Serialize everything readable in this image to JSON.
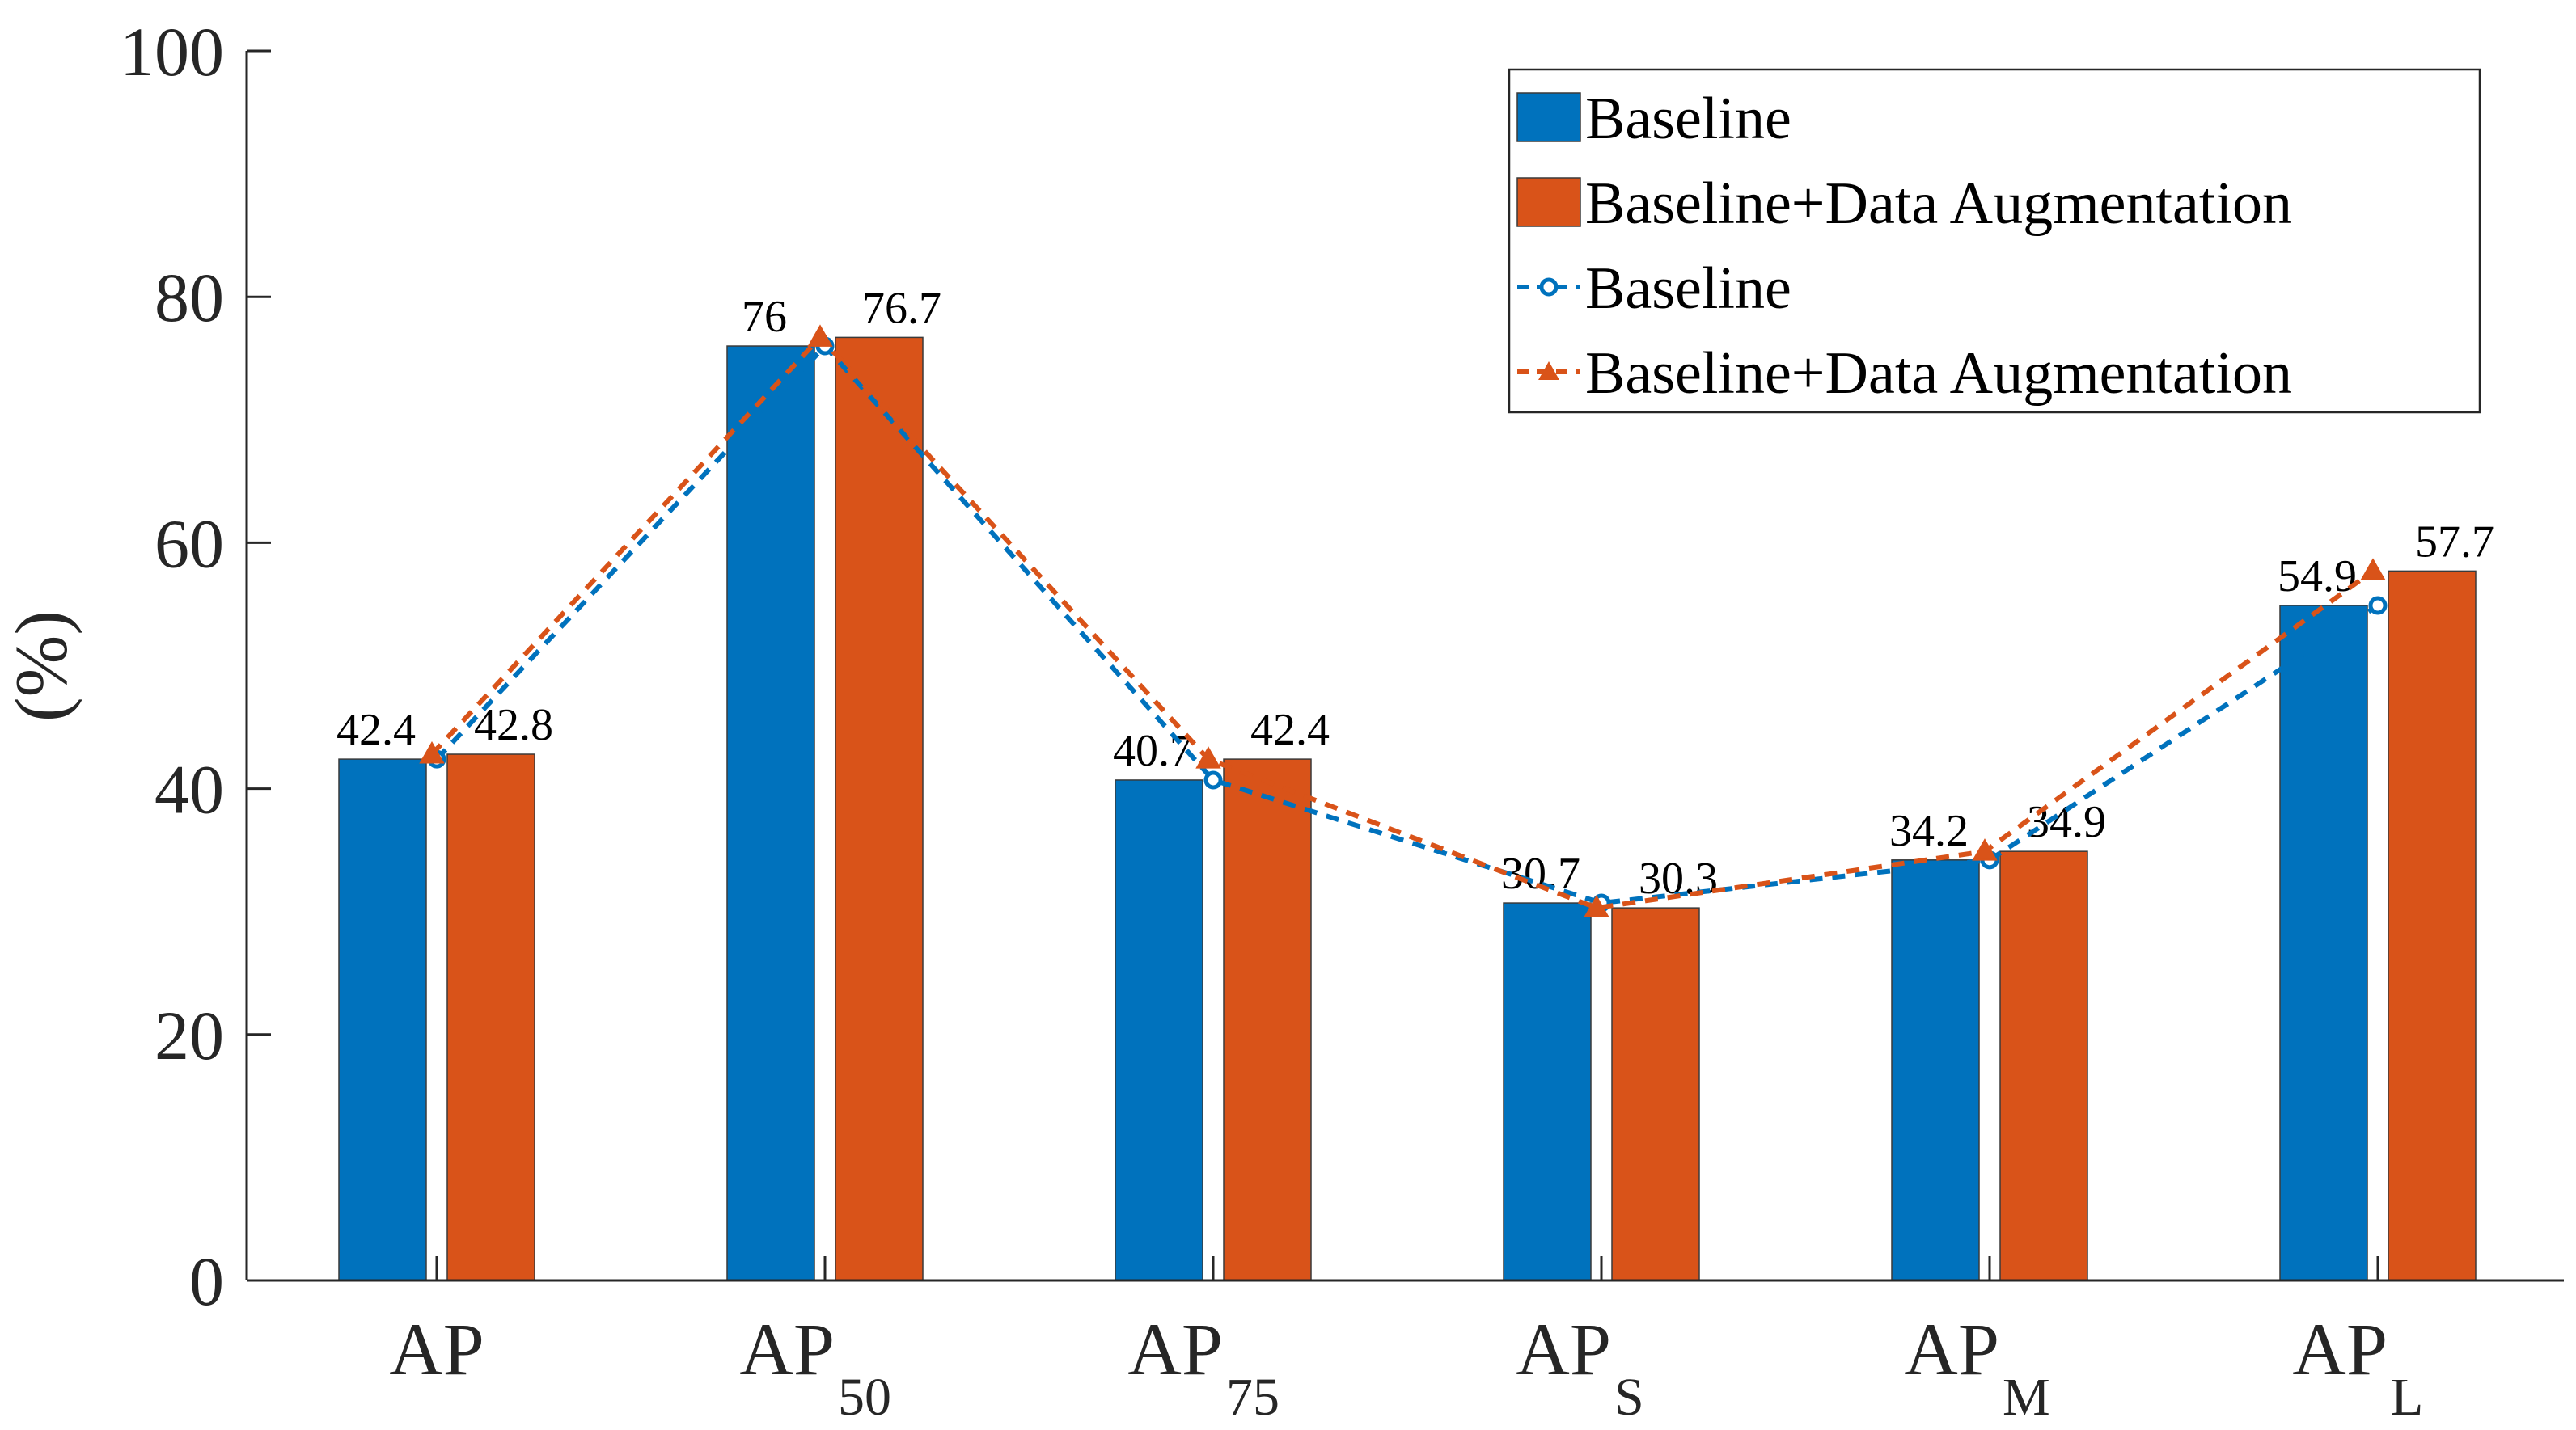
{
  "chart_data": {
    "type": "bar",
    "title": "",
    "xlabel": "",
    "ylabel": "(%)",
    "ylim": [
      0,
      100
    ],
    "yticks": [
      0,
      20,
      40,
      60,
      80,
      100
    ],
    "grid": false,
    "legend_position": "top-right",
    "categories": [
      {
        "base": "AP",
        "sub": ""
      },
      {
        "base": "AP",
        "sub": "50"
      },
      {
        "base": "AP",
        "sub": "75"
      },
      {
        "base": "AP",
        "sub": "S"
      },
      {
        "base": "AP",
        "sub": "M"
      },
      {
        "base": "AP",
        "sub": "L"
      }
    ],
    "series": [
      {
        "name": "Baseline",
        "kind": "bar",
        "color": "#0072BD",
        "values": [
          42.4,
          76,
          40.7,
          30.7,
          34.2,
          54.9
        ],
        "labels": [
          "42.4",
          "76",
          "40.7",
          "30.7",
          "34.2",
          "54.9"
        ]
      },
      {
        "name": "Baseline+Data Augmentation",
        "kind": "bar",
        "color": "#D95319",
        "values": [
          42.8,
          76.7,
          42.4,
          30.3,
          34.9,
          57.7
        ],
        "labels": [
          "42.8",
          "76.7",
          "42.4",
          "30.3",
          "34.9",
          "57.7"
        ]
      },
      {
        "name": "Baseline",
        "kind": "line",
        "marker": "circle",
        "style": "dashed",
        "color": "#0072BD",
        "values": [
          42.4,
          76,
          40.7,
          30.7,
          34.2,
          54.9
        ]
      },
      {
        "name": "Baseline+Data Augmentation",
        "kind": "line",
        "marker": "triangle",
        "style": "dashed",
        "color": "#D95319",
        "values": [
          42.8,
          76.7,
          42.4,
          30.3,
          34.9,
          57.7
        ]
      }
    ]
  }
}
